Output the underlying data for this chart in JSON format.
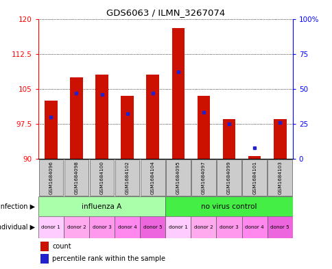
{
  "title": "GDS6063 / ILMN_3267074",
  "samples": [
    "GSM1684096",
    "GSM1684098",
    "GSM1684100",
    "GSM1684102",
    "GSM1684104",
    "GSM1684095",
    "GSM1684097",
    "GSM1684099",
    "GSM1684101",
    "GSM1684103"
  ],
  "count_values": [
    102.5,
    107.5,
    108.0,
    103.5,
    108.0,
    118.0,
    103.5,
    98.5,
    90.5,
    98.5
  ],
  "percentile_values": [
    30,
    47,
    46,
    32,
    47,
    62,
    33,
    25,
    8,
    26
  ],
  "ylim_left": [
    90,
    120
  ],
  "ylim_right": [
    0,
    100
  ],
  "yticks_left": [
    90,
    97.5,
    105,
    112.5,
    120
  ],
  "ytick_labels_left": [
    "90",
    "97.5",
    "105",
    "112.5",
    "120"
  ],
  "yticks_right": [
    0,
    25,
    50,
    75,
    100
  ],
  "ytick_labels_right": [
    "0",
    "25",
    "50",
    "75",
    "100%"
  ],
  "infection_groups": [
    {
      "label": "influenza A",
      "start": 0,
      "end": 5,
      "color": "#AAFFAA"
    },
    {
      "label": "no virus control",
      "start": 5,
      "end": 10,
      "color": "#44EE44"
    }
  ],
  "individual_labels": [
    "donor 1",
    "donor 2",
    "donor 3",
    "donor 4",
    "donor 5",
    "donor 1",
    "donor 2",
    "donor 3",
    "donor 4",
    "donor 5"
  ],
  "indiv_colors": [
    "#FFCCFF",
    "#FFAAEE",
    "#FF99EE",
    "#FF88EE",
    "#EE66DD",
    "#FFCCFF",
    "#FFAAEE",
    "#FF99EE",
    "#FF88EE",
    "#EE66DD"
  ],
  "bar_color": "#CC1100",
  "dot_color": "#2222CC",
  "bar_width": 0.5,
  "count_label": "count",
  "percentile_label": "percentile rank within the sample",
  "infection_label": "infection",
  "individual_label": "individual"
}
